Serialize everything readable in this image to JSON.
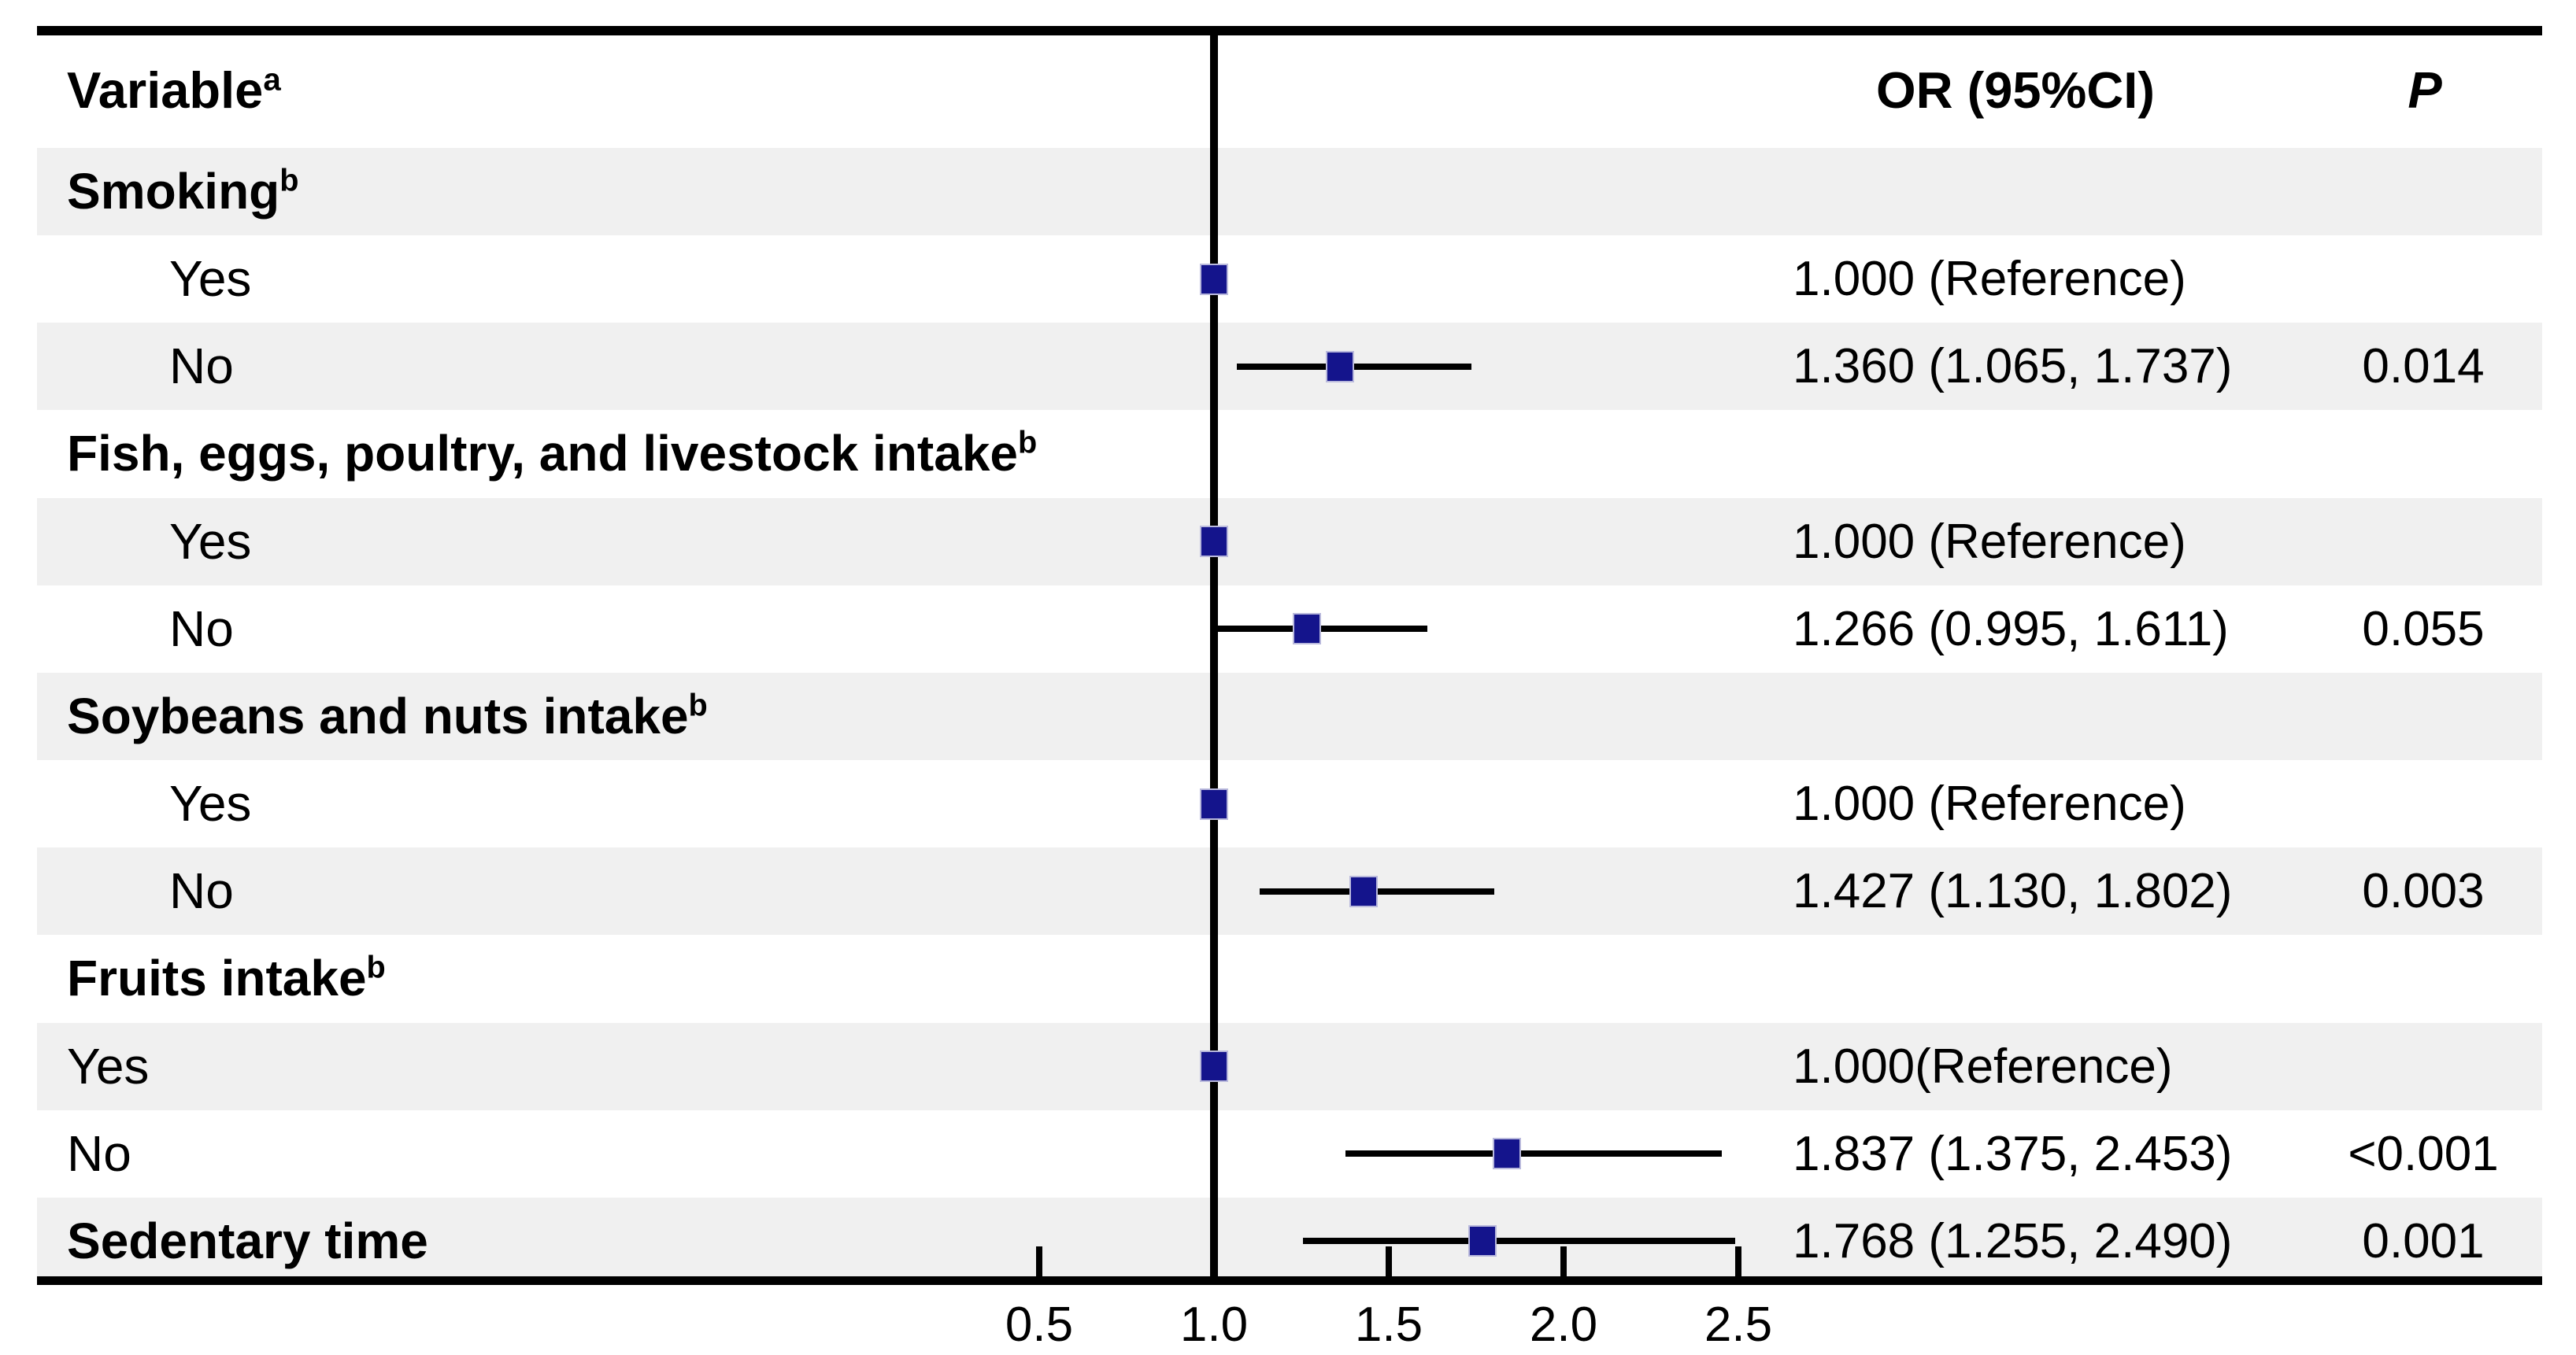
{
  "header": {
    "variable_label": "Variable",
    "variable_sup": "a",
    "or_header": "OR (95%CI)",
    "p_header": "P"
  },
  "chart_data": {
    "type": "forest",
    "x_axis": {
      "ticks": [
        0.5,
        1.0,
        1.5,
        2.0,
        2.5
      ],
      "tick_labels": [
        "0.5",
        "1.0",
        "1.5",
        "2.0",
        "2.5"
      ],
      "reference_line": 1.0,
      "grid": false
    },
    "columns": [
      "Variable",
      "OR (95%CI)",
      "P"
    ],
    "rows": [
      {
        "label": "Smoking",
        "sup": "b",
        "group": true,
        "indent": false
      },
      {
        "label": "Yes",
        "indent": true,
        "or": 1.0,
        "reference": true,
        "or_text": "1.000 (Reference)",
        "p_text": ""
      },
      {
        "label": "No",
        "indent": true,
        "or": 1.36,
        "lo": 1.065,
        "hi": 1.737,
        "or_text": "1.360 (1.065, 1.737)",
        "p_text": "0.014"
      },
      {
        "label": "Fish, eggs, poultry, and livestock intake",
        "sup": "b",
        "group": true,
        "indent": false
      },
      {
        "label": "Yes",
        "indent": true,
        "or": 1.0,
        "reference": true,
        "or_text": "1.000 (Reference)",
        "p_text": ""
      },
      {
        "label": "No",
        "indent": true,
        "or": 1.266,
        "lo": 0.995,
        "hi": 1.611,
        "or_text": "1.266 (0.995, 1.611)",
        "p_text": "0.055"
      },
      {
        "label": "Soybeans and nuts intake",
        "sup": "b",
        "group": true,
        "indent": false
      },
      {
        "label": "Yes",
        "indent": true,
        "or": 1.0,
        "reference": true,
        "or_text": "1.000 (Reference)",
        "p_text": ""
      },
      {
        "label": "No",
        "indent": true,
        "or": 1.427,
        "lo": 1.13,
        "hi": 1.802,
        "or_text": "1.427 (1.130, 1.802)",
        "p_text": "0.003"
      },
      {
        "label": "Fruits intake",
        "sup": "b",
        "group": true,
        "indent": false
      },
      {
        "label": "Yes",
        "indent": false,
        "or": 1.0,
        "reference": true,
        "or_text": "1.000(Reference)",
        "p_text": ""
      },
      {
        "label": "No",
        "indent": false,
        "or": 1.837,
        "lo": 1.375,
        "hi": 2.453,
        "or_text": "1.837 (1.375, 2.453)",
        "p_text": "<0.001"
      },
      {
        "label": "Sedentary time",
        "group": true,
        "indent": false,
        "or": 1.768,
        "lo": 1.255,
        "hi": 2.49,
        "or_text": "1.768 (1.255, 2.490)",
        "p_text": "0.001"
      }
    ],
    "colors": {
      "marker": "#14148c",
      "marker_edge": "#b9b9dc",
      "row_shade": "#f0f0f0",
      "lines": "#000000"
    }
  }
}
